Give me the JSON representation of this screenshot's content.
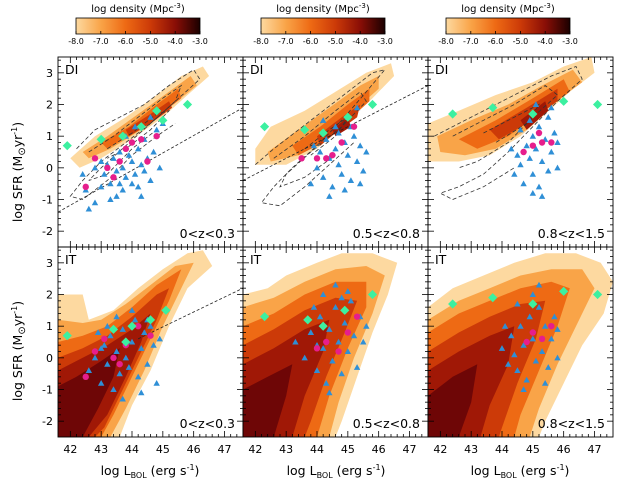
{
  "colors": {
    "density": [
      "#fdd9a0",
      "#f9a448",
      "#ee6a14",
      "#cc3a08",
      "#a01806",
      "#6e0606"
    ],
    "triangle": "#2f8fd6",
    "pink": "#e61e8c",
    "diamond": "#3cf0a0",
    "contour": "#333333"
  },
  "colorbar": {
    "label": "log density (Mpc",
    "label_sup": "-3",
    "label_end": ")",
    "ticks": [
      "-8.0",
      "-7.0",
      "-6.0",
      "-5.0",
      "-4.0",
      "-3.0"
    ],
    "range": [
      -8.0,
      -3.0
    ]
  },
  "axes": {
    "ylabel_prefix": "log SFR (M",
    "ylabel_sun": "⊙",
    "ylabel_mid": "yr",
    "ylabel_sup": "-1",
    "ylabel_end": ")",
    "xlabel_prefix": "log L",
    "xlabel_sub": "BOL",
    "xlabel_mid": " (erg s",
    "xlabel_sup": "-1",
    "xlabel_end": ")",
    "xticks": [
      "42",
      "43",
      "44",
      "45",
      "46",
      "47"
    ],
    "yticks": [
      "3",
      "2",
      "1",
      "0",
      "-1",
      "-2"
    ]
  },
  "chart_data": {
    "type": "scatter",
    "xlim": [
      41.6,
      47.6
    ],
    "ylim": [
      -2.5,
      3.5
    ],
    "panels": [
      {
        "tag": "DI",
        "zlabel": "0<z<0.3",
        "triangles": [
          [
            42.5,
            -0.7
          ],
          [
            42.6,
            -1.3
          ],
          [
            42.8,
            -1.1
          ],
          [
            43.0,
            -0.6
          ],
          [
            43.1,
            -0.2
          ],
          [
            43.2,
            0.1
          ],
          [
            43.3,
            -0.5
          ],
          [
            43.4,
            0.3
          ],
          [
            43.5,
            -0.1
          ],
          [
            43.6,
            0.5
          ],
          [
            43.7,
            0.0
          ],
          [
            43.8,
            -0.3
          ],
          [
            43.9,
            0.4
          ],
          [
            44.0,
            0.2
          ],
          [
            44.1,
            -0.2
          ],
          [
            44.2,
            0.6
          ],
          [
            44.3,
            0.1
          ],
          [
            44.4,
            0.9
          ],
          [
            44.5,
            0.3
          ],
          [
            44.6,
            -0.4
          ],
          [
            44.7,
            0.5
          ],
          [
            44.8,
            1.2
          ],
          [
            43.3,
            -1.0
          ],
          [
            43.5,
            -0.9
          ],
          [
            43.7,
            -0.7
          ],
          [
            44.0,
            -0.5
          ],
          [
            44.2,
            -0.6
          ],
          [
            44.4,
            -0.1
          ],
          [
            43.0,
            0.2
          ],
          [
            43.8,
            1.0
          ],
          [
            44.1,
            1.3
          ],
          [
            44.6,
            1.6
          ],
          [
            45.0,
            1.4
          ],
          [
            42.8,
            0.0
          ],
          [
            42.4,
            -0.2
          ],
          [
            43.6,
            -0.5
          ],
          [
            44.3,
            -0.9
          ],
          [
            44.9,
            0.0
          ]
        ],
        "pink": [
          [
            42.5,
            -0.6
          ],
          [
            43.2,
            0.0
          ],
          [
            43.4,
            -0.3
          ],
          [
            43.6,
            0.2
          ],
          [
            43.8,
            0.6
          ],
          [
            44.0,
            0.8
          ],
          [
            44.3,
            0.9
          ],
          [
            44.5,
            0.2
          ],
          [
            44.8,
            1.0
          ],
          [
            42.8,
            0.3
          ]
        ],
        "diamonds": [
          [
            41.9,
            0.7
          ],
          [
            43.0,
            0.9
          ],
          [
            43.7,
            1.0
          ],
          [
            44.3,
            1.3
          ],
          [
            45.0,
            1.5
          ],
          [
            45.8,
            2.0
          ],
          [
            44.8,
            1.8
          ]
        ],
        "relation": [
          [
            41.6,
            -1.4
          ],
          [
            47.6,
            1.9
          ]
        ]
      },
      {
        "tag": "DI",
        "zlabel": "0.5<z<0.8",
        "triangles": [
          [
            43.8,
            -0.5
          ],
          [
            44.0,
            0.0
          ],
          [
            44.2,
            -0.3
          ],
          [
            44.4,
            0.3
          ],
          [
            44.5,
            -0.6
          ],
          [
            44.6,
            0.6
          ],
          [
            44.7,
            0.1
          ],
          [
            44.8,
            -0.2
          ],
          [
            44.9,
            0.8
          ],
          [
            45.0,
            0.4
          ],
          [
            45.1,
            -0.4
          ],
          [
            45.2,
            1.0
          ],
          [
            45.3,
            0.2
          ],
          [
            45.4,
            0.7
          ],
          [
            45.5,
            -0.1
          ],
          [
            44.3,
            0.9
          ],
          [
            44.6,
            1.3
          ],
          [
            45.0,
            1.6
          ],
          [
            45.3,
            1.9
          ],
          [
            44.1,
            0.5
          ],
          [
            44.9,
            -0.7
          ],
          [
            45.6,
            0.5
          ],
          [
            44.4,
            -0.9
          ],
          [
            44.7,
            1.1
          ],
          [
            45.1,
            1.3
          ],
          [
            44.2,
            1.5
          ],
          [
            43.9,
            0.7
          ],
          [
            45.4,
            -0.5
          ]
        ],
        "pink": [
          [
            43.5,
            0.3
          ],
          [
            44.0,
            0.3
          ],
          [
            44.5,
            0.4
          ],
          [
            44.8,
            0.8
          ],
          [
            45.2,
            1.3
          ],
          [
            44.3,
            0.3
          ]
        ],
        "diamonds": [
          [
            42.3,
            1.3
          ],
          [
            43.6,
            1.2
          ],
          [
            44.2,
            1.1
          ],
          [
            45.0,
            1.6
          ],
          [
            45.8,
            2.0
          ]
        ],
        "relation": [
          [
            41.6,
            -0.4
          ],
          [
            47.6,
            2.6
          ]
        ]
      },
      {
        "tag": "DI",
        "zlabel": "0.8<z<1.5",
        "triangles": [
          [
            44.4,
            -0.2
          ],
          [
            44.5,
            0.4
          ],
          [
            44.6,
            0.1
          ],
          [
            44.7,
            -0.5
          ],
          [
            44.8,
            0.7
          ],
          [
            44.9,
            0.3
          ],
          [
            45.0,
            -0.2
          ],
          [
            45.0,
            1.0
          ],
          [
            45.1,
            0.6
          ],
          [
            45.2,
            -0.6
          ],
          [
            45.2,
            1.3
          ],
          [
            45.3,
            0.2
          ],
          [
            45.4,
            0.9
          ],
          [
            45.5,
            -0.1
          ],
          [
            45.5,
            1.6
          ],
          [
            45.6,
            0.5
          ],
          [
            45.7,
            1.1
          ],
          [
            45.8,
            0.0
          ],
          [
            45.3,
            -0.9
          ],
          [
            44.9,
            1.5
          ],
          [
            45.6,
            1.9
          ],
          [
            44.6,
            1.2
          ],
          [
            45.1,
            2.0
          ],
          [
            45.8,
            0.8
          ],
          [
            44.3,
            0.6
          ],
          [
            45.0,
            -0.8
          ]
        ],
        "pink": [
          [
            44.7,
            0.5
          ],
          [
            45.0,
            0.7
          ],
          [
            45.3,
            0.8
          ],
          [
            45.6,
            0.8
          ],
          [
            45.2,
            1.1
          ]
        ],
        "diamonds": [
          [
            42.4,
            1.7
          ],
          [
            43.7,
            1.9
          ],
          [
            45.0,
            1.7
          ],
          [
            46.0,
            2.1
          ],
          [
            47.1,
            2.0
          ]
        ],
        "relation": []
      },
      {
        "tag": "IT",
        "zlabel": "0<z<0.3",
        "triangles": [
          [
            42.6,
            -0.4
          ],
          [
            42.8,
            0.0
          ],
          [
            43.0,
            -0.8
          ],
          [
            43.1,
            0.4
          ],
          [
            43.2,
            -0.2
          ],
          [
            43.3,
            0.7
          ],
          [
            43.4,
            -1.0
          ],
          [
            43.5,
            0.2
          ],
          [
            43.6,
            -0.5
          ],
          [
            43.7,
            0.9
          ],
          [
            43.8,
            0.0
          ],
          [
            43.9,
            -0.3
          ],
          [
            44.0,
            0.5
          ],
          [
            44.1,
            1.2
          ],
          [
            44.2,
            -0.6
          ],
          [
            44.3,
            0.3
          ],
          [
            44.4,
            0.8
          ],
          [
            44.5,
            -0.2
          ],
          [
            44.6,
            1.0
          ],
          [
            44.7,
            0.4
          ],
          [
            44.8,
            -0.8
          ],
          [
            43.2,
            1.0
          ],
          [
            43.5,
            1.3
          ],
          [
            44.0,
            1.5
          ],
          [
            44.3,
            -1.1
          ],
          [
            43.7,
            -1.3
          ],
          [
            42.9,
            0.8
          ],
          [
            44.9,
            0.6
          ],
          [
            43.0,
            0.3
          ],
          [
            44.5,
            1.2
          ]
        ],
        "pink": [
          [
            42.5,
            -0.6
          ],
          [
            43.1,
            0.6
          ],
          [
            43.4,
            0.0
          ],
          [
            43.8,
            0.4
          ],
          [
            44.2,
            1.0
          ],
          [
            44.6,
            0.7
          ],
          [
            43.6,
            -0.2
          ],
          [
            42.8,
            0.2
          ]
        ],
        "diamonds": [
          [
            41.9,
            0.7
          ],
          [
            43.4,
            0.9
          ],
          [
            44.0,
            1.0
          ],
          [
            44.6,
            1.2
          ],
          [
            45.1,
            1.5
          ],
          [
            43.8,
            0.5
          ]
        ],
        "relation": [
          [
            44.2,
            0.6
          ],
          [
            47.6,
            2.2
          ]
        ]
      },
      {
        "tag": "IT",
        "zlabel": "0.5<z<0.8",
        "triangles": [
          [
            43.3,
            0.5
          ],
          [
            43.6,
            0.0
          ],
          [
            43.8,
            0.8
          ],
          [
            44.0,
            -0.4
          ],
          [
            44.1,
            1.3
          ],
          [
            44.2,
            0.3
          ],
          [
            44.3,
            -0.8
          ],
          [
            44.4,
            0.9
          ],
          [
            44.5,
            -0.1
          ],
          [
            44.6,
            1.6
          ],
          [
            44.7,
            0.5
          ],
          [
            44.8,
            -0.5
          ],
          [
            44.9,
            1.1
          ],
          [
            45.0,
            0.2
          ],
          [
            45.1,
            1.8
          ],
          [
            45.2,
            0.7
          ],
          [
            45.3,
            -0.3
          ],
          [
            45.4,
            1.3
          ],
          [
            44.2,
            2.0
          ],
          [
            44.6,
            2.3
          ],
          [
            45.0,
            2.1
          ],
          [
            44.4,
            -1.1
          ],
          [
            45.5,
            0.5
          ],
          [
            43.9,
            1.6
          ],
          [
            44.0,
            0.4
          ],
          [
            44.8,
            1.9
          ],
          [
            45.6,
            1.0
          ]
        ],
        "pink": [
          [
            44.0,
            0.3
          ],
          [
            44.3,
            0.5
          ],
          [
            44.7,
            0.2
          ],
          [
            45.0,
            0.8
          ],
          [
            45.3,
            1.3
          ]
        ],
        "diamonds": [
          [
            42.3,
            1.3
          ],
          [
            43.7,
            1.2
          ],
          [
            44.2,
            1.0
          ],
          [
            44.9,
            1.5
          ],
          [
            45.8,
            2.0
          ]
        ],
        "relation": []
      },
      {
        "tag": "IT",
        "zlabel": "0.8<z<1.5",
        "triangles": [
          [
            44.0,
            0.3
          ],
          [
            44.2,
            -0.2
          ],
          [
            44.3,
            0.7
          ],
          [
            44.4,
            0.1
          ],
          [
            44.5,
            -0.4
          ],
          [
            44.6,
            1.0
          ],
          [
            44.7,
            0.4
          ],
          [
            44.8,
            -0.7
          ],
          [
            44.9,
            1.3
          ],
          [
            45.0,
            0.6
          ],
          [
            45.1,
            -0.1
          ],
          [
            45.2,
            1.6
          ],
          [
            45.3,
            0.2
          ],
          [
            45.4,
            1.0
          ],
          [
            45.5,
            -0.3
          ],
          [
            45.6,
            0.6
          ],
          [
            45.7,
            1.3
          ],
          [
            45.8,
            0.0
          ],
          [
            44.5,
            1.7
          ],
          [
            45.0,
            2.0
          ],
          [
            45.4,
            -0.8
          ],
          [
            44.1,
            1.0
          ],
          [
            45.2,
            2.3
          ],
          [
            44.7,
            -1.0
          ],
          [
            45.8,
            0.9
          ]
        ],
        "pink": [
          [
            44.8,
            0.5
          ],
          [
            45.0,
            0.8
          ],
          [
            45.3,
            0.6
          ],
          [
            45.6,
            1.0
          ]
        ],
        "diamonds": [
          [
            42.4,
            1.7
          ],
          [
            43.7,
            1.9
          ],
          [
            45.0,
            1.7
          ],
          [
            46.0,
            2.1
          ],
          [
            47.1,
            2.0
          ]
        ],
        "relation": []
      }
    ]
  }
}
